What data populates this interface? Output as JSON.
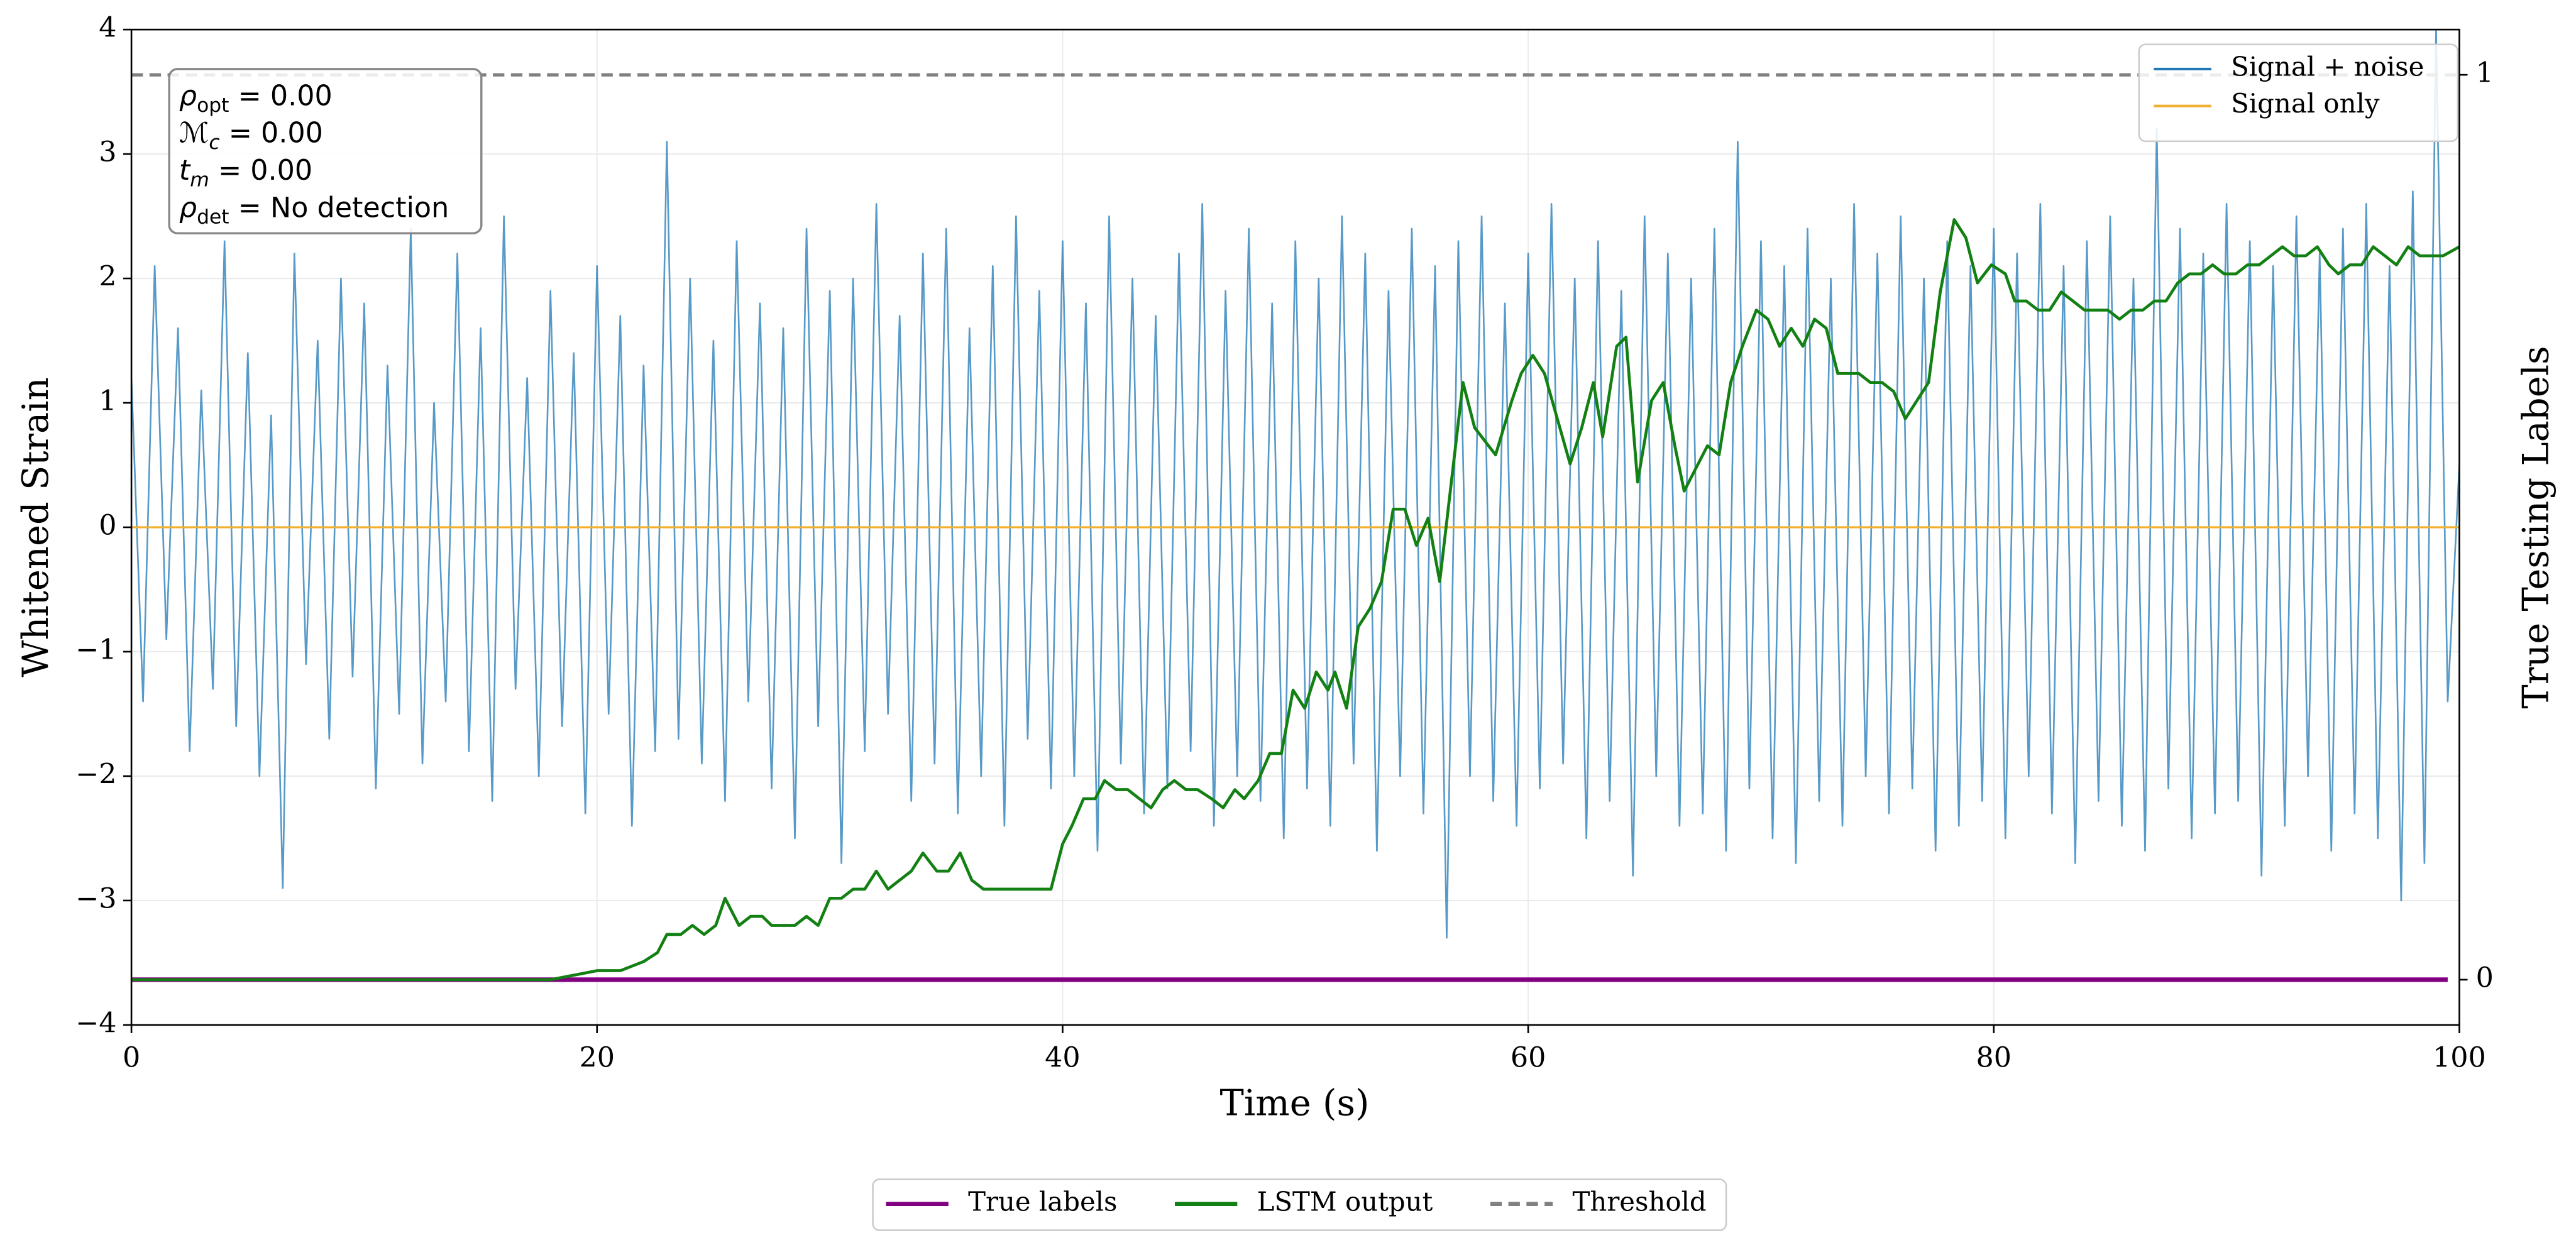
{
  "chart_data": {
    "type": "line",
    "xlabel": "Time (s)",
    "ylabel": "Whitened Strain",
    "y2label": "True Testing Labels",
    "xlim": [
      0,
      100
    ],
    "ylim": [
      -4,
      4
    ],
    "y2lim": [
      -0.05,
      1.05
    ],
    "xticks": [
      0,
      20,
      40,
      60,
      80,
      100
    ],
    "yticks": [
      {
        "value": -4,
        "label": "−4"
      },
      {
        "value": -3,
        "label": "−3"
      },
      {
        "value": -2,
        "label": "−2"
      },
      {
        "value": -1,
        "label": "−1"
      },
      0,
      1,
      2,
      3,
      4
    ],
    "y2ticks": [
      0,
      1
    ],
    "grid": true,
    "annotation": [
      {
        "symbol": "ρ",
        "sub": "opt",
        "text": " = 0.00"
      },
      {
        "symbol": "ℳ",
        "sub": "c",
        "text": " = 0.00"
      },
      {
        "symbol": "t",
        "sub": "m",
        "text": " = 0.00"
      },
      {
        "symbol": "ρ",
        "sub": "det",
        "text": " = No detection"
      }
    ],
    "series": [
      {
        "name": "Signal + noise",
        "color": "#1f77b4",
        "axis": "y",
        "legend": "upper right",
        "x": [
          0,
          0.5,
          1,
          1.5,
          2,
          2.5,
          3,
          3.5,
          4,
          4.5,
          5,
          5.5,
          6,
          6.5,
          7,
          7.5,
          8,
          8.5,
          9,
          9.5,
          10,
          10.5,
          11,
          11.5,
          12,
          12.5,
          13,
          13.5,
          14,
          14.5,
          15,
          15.5,
          16,
          16.5,
          17,
          17.5,
          18,
          18.5,
          19,
          19.5,
          20,
          20.5,
          21,
          21.5,
          22,
          22.5,
          23,
          23.5,
          24,
          24.5,
          25,
          25.5,
          26,
          26.5,
          27,
          27.5,
          28,
          28.5,
          29,
          29.5,
          30,
          30.5,
          31,
          31.5,
          32,
          32.5,
          33,
          33.5,
          34,
          34.5,
          35,
          35.5,
          36,
          36.5,
          37,
          37.5,
          38,
          38.5,
          39,
          39.5,
          40,
          40.5,
          41,
          41.5,
          42,
          42.5,
          43,
          43.5,
          44,
          44.5,
          45,
          45.5,
          46,
          46.5,
          47,
          47.5,
          48,
          48.5,
          49,
          49.5,
          50,
          50.5,
          51,
          51.5,
          52,
          52.5,
          53,
          53.5,
          54,
          54.5,
          55,
          55.5,
          56,
          56.5,
          57,
          57.5,
          58,
          58.5,
          59,
          59.5,
          60,
          60.5,
          61,
          61.5,
          62,
          62.5,
          63,
          63.5,
          64,
          64.5,
          65,
          65.5,
          66,
          66.5,
          67,
          67.5,
          68,
          68.5,
          69,
          69.5,
          70,
          70.5,
          71,
          71.5,
          72,
          72.5,
          73,
          73.5,
          74,
          74.5,
          75,
          75.5,
          76,
          76.5,
          77,
          77.5,
          78,
          78.5,
          79,
          79.5,
          80,
          80.5,
          81,
          81.5,
          82,
          82.5,
          83,
          83.5,
          84,
          84.5,
          85,
          85.5,
          86,
          86.5,
          87,
          87.5,
          88,
          88.5,
          89,
          89.5,
          90,
          90.5,
          91,
          91.5,
          92,
          92.5,
          93,
          93.5,
          94,
          94.5,
          95,
          95.5,
          96,
          96.5,
          97,
          97.5,
          98,
          98.5,
          99,
          99.5,
          100
        ],
        "values": [
          1.2,
          -1.4,
          2.1,
          -0.9,
          1.6,
          -1.8,
          1.1,
          -1.3,
          2.3,
          -1.6,
          1.4,
          -2.0,
          0.9,
          -2.9,
          2.2,
          -1.1,
          1.5,
          -1.7,
          2.0,
          -1.2,
          1.8,
          -2.1,
          1.3,
          -1.5,
          2.4,
          -1.9,
          1.0,
          -1.4,
          2.2,
          -1.8,
          1.6,
          -2.2,
          2.5,
          -1.3,
          1.2,
          -2.0,
          1.9,
          -1.6,
          1.4,
          -2.3,
          2.1,
          -1.5,
          1.7,
          -2.4,
          1.3,
          -1.8,
          3.1,
          -1.7,
          2.0,
          -1.9,
          1.5,
          -2.2,
          2.3,
          -1.4,
          1.8,
          -2.1,
          1.6,
          -2.5,
          2.4,
          -1.6,
          1.9,
          -2.7,
          2.0,
          -1.8,
          2.6,
          -1.5,
          1.7,
          -2.2,
          2.2,
          -1.9,
          2.4,
          -2.3,
          1.6,
          -2.0,
          2.1,
          -2.4,
          2.5,
          -1.7,
          1.9,
          -2.1,
          2.3,
          -2.0,
          1.8,
          -2.6,
          2.5,
          -1.9,
          2.0,
          -2.3,
          1.7,
          -2.1,
          2.2,
          -1.8,
          2.6,
          -2.4,
          1.9,
          -2.0,
          2.4,
          -2.2,
          1.8,
          -2.5,
          2.3,
          -2.1,
          2.0,
          -2.4,
          2.5,
          -1.9,
          2.2,
          -2.6,
          1.9,
          -2.0,
          2.4,
          -2.3,
          2.1,
          -3.3,
          2.3,
          -2.0,
          2.5,
          -2.2,
          1.8,
          -2.4,
          2.2,
          -2.1,
          2.6,
          -1.9,
          2.0,
          -2.5,
          2.3,
          -2.2,
          1.9,
          -2.8,
          2.5,
          -2.0,
          2.2,
          -2.4,
          2.0,
          -2.3,
          2.4,
          -2.6,
          3.1,
          -2.1,
          2.3,
          -2.5,
          2.1,
          -2.7,
          2.4,
          -2.2,
          2.0,
          -2.4,
          2.6,
          -2.0,
          2.2,
          -2.3,
          2.5,
          -2.1,
          2.0,
          -2.6,
          2.3,
          -2.4,
          2.1,
          -2.2,
          2.4,
          -2.5,
          2.2,
          -2.0,
          2.6,
          -2.3,
          2.1,
          -2.7,
          2.3,
          -2.2,
          2.5,
          -2.4,
          2.0,
          -2.6,
          3.2,
          -2.1,
          2.4,
          -2.5,
          2.2,
          -2.3,
          2.6,
          -2.2,
          2.3,
          -2.8,
          2.1,
          -2.4,
          2.5,
          -2.0,
          2.2,
          -2.6,
          2.4,
          -2.3,
          2.6,
          -2.5,
          2.1,
          -3.0,
          2.7,
          -2.7,
          4.0,
          -1.4,
          0.5
        ]
      },
      {
        "name": "Signal only",
        "color": "#f0b030",
        "axis": "y",
        "legend": "upper right",
        "x": [
          0,
          100
        ],
        "values": [
          0,
          0
        ]
      },
      {
        "name": "True labels",
        "color": "#800080",
        "axis": "y2",
        "legend": "lower center",
        "x": [
          0,
          99.5
        ],
        "values": [
          0,
          0
        ]
      },
      {
        "name": "LSTM output",
        "color": "#138013",
        "axis": "y2",
        "legend": "lower center",
        "x": [
          0,
          18.0,
          20.0,
          21.0,
          22.0,
          22.6,
          23.0,
          23.6,
          24.1,
          24.6,
          25.1,
          25.5,
          26.1,
          26.6,
          27.1,
          27.5,
          28.5,
          29.0,
          29.5,
          30.0,
          30.5,
          31.0,
          31.5,
          32.0,
          32.5,
          33.0,
          33.5,
          34.0,
          34.6,
          35.1,
          35.6,
          36.1,
          36.6,
          37.5,
          38.5,
          39.5,
          40.0,
          40.4,
          40.9,
          41.4,
          41.8,
          42.3,
          42.8,
          43.3,
          43.8,
          44.3,
          44.8,
          45.3,
          45.8,
          46.4,
          46.9,
          47.4,
          47.8,
          48.4,
          48.9,
          49.4,
          49.9,
          50.4,
          50.9,
          51.4,
          51.7,
          52.2,
          52.7,
          53.2,
          53.7,
          54.2,
          54.7,
          55.2,
          55.7,
          56.2,
          57.2,
          57.7,
          58.6,
          59.3,
          59.7,
          60.2,
          60.7,
          61.8,
          62.3,
          62.8,
          63.2,
          63.8,
          64.2,
          64.7,
          65.3,
          65.8,
          66.3,
          66.7,
          67.3,
          67.7,
          68.2,
          68.7,
          69.2,
          69.8,
          70.3,
          70.8,
          71.3,
          71.8,
          72.3,
          72.8,
          73.3,
          73.7,
          74.2,
          74.7,
          75.2,
          75.7,
          76.2,
          76.7,
          77.2,
          77.7,
          78.3,
          78.8,
          79.3,
          79.9,
          80.5,
          80.9,
          81.4,
          81.9,
          82.4,
          82.9,
          83.4,
          83.9,
          84.4,
          84.9,
          85.4,
          85.9,
          86.4,
          86.9,
          87.4,
          87.9,
          88.4,
          88.9,
          89.4,
          89.9,
          90.4,
          90.9,
          91.4,
          91.9,
          92.4,
          92.9,
          93.4,
          93.9,
          94.4,
          94.8,
          95.3,
          95.8,
          96.3,
          96.8,
          97.3,
          97.8,
          98.3,
          98.8,
          99.3,
          100
        ],
        "values": [
          0.0,
          0.0,
          0.01,
          0.01,
          0.02,
          0.03,
          0.05,
          0.05,
          0.06,
          0.05,
          0.06,
          0.09,
          0.06,
          0.07,
          0.07,
          0.06,
          0.06,
          0.07,
          0.06,
          0.09,
          0.09,
          0.1,
          0.1,
          0.12,
          0.1,
          0.11,
          0.12,
          0.14,
          0.12,
          0.12,
          0.14,
          0.11,
          0.1,
          0.1,
          0.1,
          0.1,
          0.15,
          0.17,
          0.2,
          0.2,
          0.22,
          0.21,
          0.21,
          0.2,
          0.19,
          0.21,
          0.22,
          0.21,
          0.21,
          0.2,
          0.19,
          0.21,
          0.2,
          0.22,
          0.25,
          0.25,
          0.32,
          0.3,
          0.34,
          0.32,
          0.34,
          0.3,
          0.39,
          0.41,
          0.44,
          0.52,
          0.52,
          0.48,
          0.51,
          0.44,
          0.66,
          0.61,
          0.58,
          0.64,
          0.67,
          0.69,
          0.67,
          0.57,
          0.61,
          0.66,
          0.6,
          0.7,
          0.71,
          0.55,
          0.64,
          0.66,
          0.59,
          0.54,
          0.57,
          0.59,
          0.58,
          0.66,
          0.7,
          0.74,
          0.73,
          0.7,
          0.72,
          0.7,
          0.73,
          0.72,
          0.67,
          0.67,
          0.67,
          0.66,
          0.66,
          0.65,
          0.62,
          0.64,
          0.66,
          0.76,
          0.84,
          0.82,
          0.77,
          0.79,
          0.78,
          0.75,
          0.75,
          0.74,
          0.74,
          0.76,
          0.75,
          0.74,
          0.74,
          0.74,
          0.73,
          0.74,
          0.74,
          0.75,
          0.75,
          0.77,
          0.78,
          0.78,
          0.79,
          0.78,
          0.78,
          0.79,
          0.79,
          0.8,
          0.81,
          0.8,
          0.8,
          0.81,
          0.79,
          0.78,
          0.79,
          0.79,
          0.81,
          0.8,
          0.79,
          0.81,
          0.8,
          0.8,
          0.8,
          0.81
        ]
      },
      {
        "name": "Threshold",
        "color": "#808080",
        "axis": "y2",
        "legend": "lower center",
        "linestyle": "dashed",
        "x": [
          0,
          100
        ],
        "values": [
          1,
          1
        ]
      }
    ]
  }
}
